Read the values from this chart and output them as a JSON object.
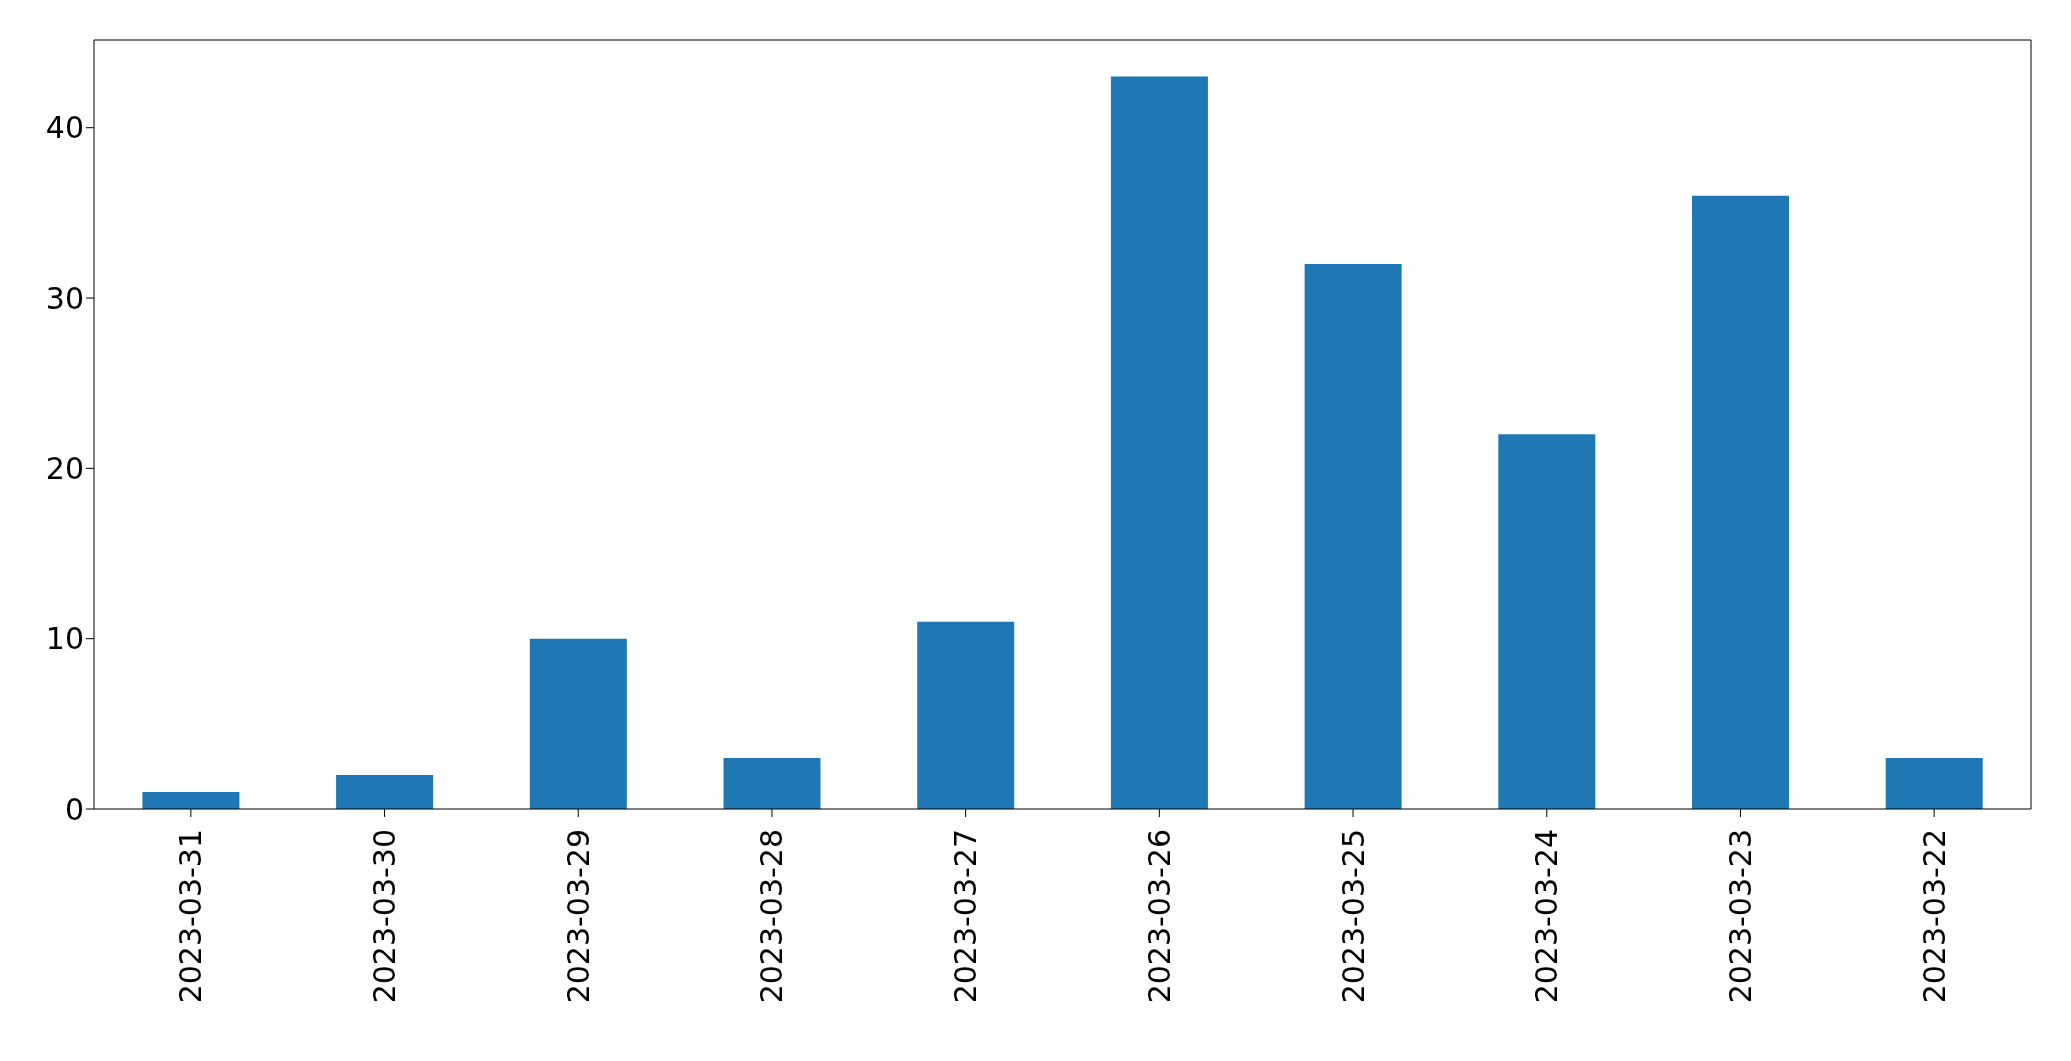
{
  "chart_data": {
    "type": "bar",
    "categories": [
      "2023-03-31",
      "2023-03-30",
      "2023-03-29",
      "2023-03-28",
      "2023-03-27",
      "2023-03-26",
      "2023-03-25",
      "2023-03-24",
      "2023-03-23",
      "2023-03-22"
    ],
    "values": [
      1,
      2,
      10,
      3,
      11,
      43,
      32,
      22,
      36,
      3
    ],
    "color": "#1f77b4",
    "ylim": [
      0,
      45.15
    ],
    "yticks": [
      0,
      10,
      20,
      30,
      40
    ],
    "grid": false
  }
}
